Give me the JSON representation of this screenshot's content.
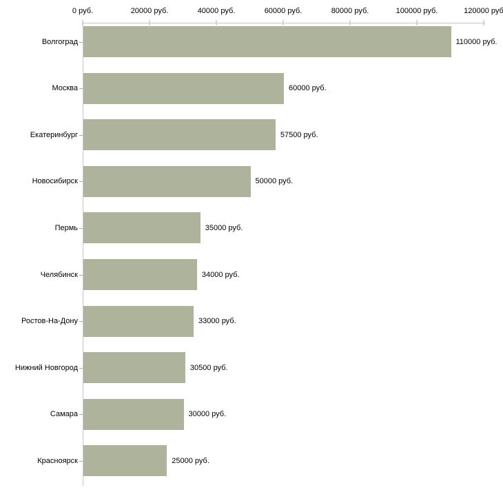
{
  "chart_data": {
    "type": "bar",
    "orientation": "horizontal",
    "title": "",
    "xlabel": "",
    "ylabel": "",
    "categories": [
      "Волгоград",
      "Москва",
      "Екатеринбург",
      "Новосибирск",
      "Пермь",
      "Челябинск",
      "Ростов-На-Дону",
      "Нижний Новгород",
      "Самара",
      "Красноярск"
    ],
    "values": [
      110000,
      60000,
      57500,
      50000,
      35000,
      34000,
      33000,
      30500,
      30000,
      25000
    ],
    "value_labels": [
      "110000 руб.",
      "60000 руб.",
      "57500 руб.",
      "50000 руб.",
      "35000 руб.",
      "34000 руб.",
      "33000 руб.",
      "30500 руб.",
      "30000 руб.",
      "25000 руб."
    ],
    "x_tick_values": [
      0,
      20000,
      40000,
      60000,
      80000,
      100000,
      120000
    ],
    "x_tick_labels": [
      "0 руб.",
      "20000 руб.",
      "40000 руб.",
      "60000 руб.",
      "80000 руб.",
      "100000 руб.",
      "120000 руб"
    ],
    "xlim": [
      0,
      120000
    ],
    "grid": false,
    "legend": false,
    "axis_position": "top",
    "colors": {
      "bar": "#aeb49b",
      "axis_line": "#c6c6c6",
      "axis_tick": "#d8dcb8",
      "category_tick": "#a9a9a9",
      "text": "#000000",
      "background": "#ffffff"
    }
  }
}
